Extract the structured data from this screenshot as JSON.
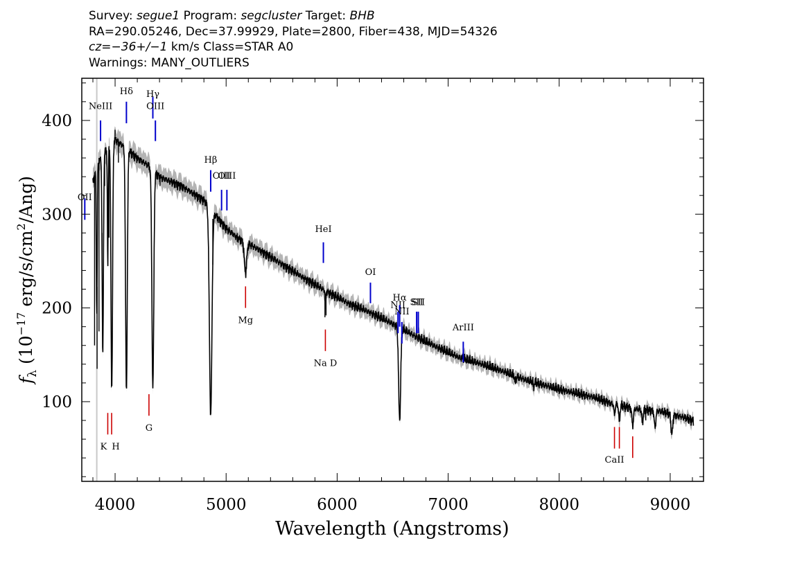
{
  "header": {
    "line1": {
      "survey_label": "Survey: ",
      "survey": "segue1",
      "program_label": " Program: ",
      "program": "segcluster",
      "target_label": " Target: ",
      "target": "BHB"
    },
    "line2": "RA=290.05246, Dec=37.99929, Plate=2800, Fiber=438, MJD=54326",
    "line3": {
      "cz": "cz=−36+/−1",
      "rest": " km/s Class=STAR A0"
    },
    "line4": "Warnings: MANY_OUTLIERS"
  },
  "chart_data": {
    "type": "line",
    "title": "",
    "xlabel": "Wavelength (Angstroms)",
    "ylabel": "f_λ (10^−17 erg/s/cm^2/Ang)",
    "xlim": [
      3700,
      9300
    ],
    "ylim": [
      15,
      445
    ],
    "x_ticks": [
      4000,
      5000,
      6000,
      7000,
      8000,
      9000
    ],
    "y_ticks": [
      100,
      200,
      300,
      400
    ],
    "colors": {
      "spectrum": "#000000",
      "error": "#b4b4b4",
      "emission": "#0000cc",
      "absorption": "#cc0000"
    },
    "continuum": [
      [
        3800,
        335
      ],
      [
        3850,
        355
      ],
      [
        3900,
        365
      ],
      [
        4000,
        380
      ],
      [
        4100,
        370
      ],
      [
        4200,
        360
      ],
      [
        4300,
        352
      ],
      [
        4400,
        340
      ],
      [
        4600,
        330
      ],
      [
        4800,
        315
      ],
      [
        4900,
        300
      ],
      [
        5000,
        285
      ],
      [
        5100,
        275
      ],
      [
        5300,
        262
      ],
      [
        5500,
        247
      ],
      [
        5700,
        232
      ],
      [
        5900,
        218
      ],
      [
        6100,
        205
      ],
      [
        6300,
        195
      ],
      [
        6500,
        183
      ],
      [
        6700,
        170
      ],
      [
        6900,
        158
      ],
      [
        7100,
        147
      ],
      [
        7300,
        140
      ],
      [
        7500,
        132
      ],
      [
        7700,
        123
      ],
      [
        8000,
        113
      ],
      [
        8300,
        105
      ],
      [
        8500,
        97
      ],
      [
        8700,
        92
      ],
      [
        8900,
        90
      ],
      [
        9100,
        84
      ],
      [
        9200,
        80
      ]
    ],
    "absorption_dips": [
      [
        3835,
        0.45,
        6
      ],
      [
        3889,
        0.6,
        8
      ],
      [
        3934,
        0.35,
        5
      ],
      [
        3970,
        0.7,
        10
      ],
      [
        4102,
        0.7,
        11
      ],
      [
        4340,
        0.67,
        12
      ],
      [
        4861,
        0.72,
        16
      ],
      [
        5175,
        0.12,
        15
      ],
      [
        5895,
        0.1,
        4
      ],
      [
        6563,
        0.55,
        13
      ],
      [
        7605,
        0.05,
        8
      ],
      [
        7770,
        0.06,
        4
      ],
      [
        8498,
        0.12,
        7
      ],
      [
        8542,
        0.18,
        8
      ],
      [
        8662,
        0.2,
        10
      ],
      [
        8750,
        0.15,
        9
      ],
      [
        8863,
        0.2,
        10
      ],
      [
        9015,
        0.25,
        11
      ]
    ],
    "spikes": [
      [
        3815,
        160
      ],
      [
        3838,
        135
      ],
      [
        3855,
        175
      ],
      [
        3883,
        280
      ],
      [
        3906,
        330
      ],
      [
        3945,
        275
      ],
      [
        4000,
        390
      ],
      [
        4030,
        355
      ],
      [
        4240,
        358
      ],
      [
        4405,
        330
      ],
      [
        4880,
        295
      ],
      [
        5100,
        280
      ],
      [
        5890,
        190
      ],
      [
        5900,
        192
      ],
      [
        7750,
        122
      ],
      [
        8780,
        80
      ]
    ],
    "emission_lines": [
      {
        "label": "NeIII",
        "wavelength": 3869,
        "label_y": 412,
        "tick_bottom": 378,
        "tick_top": 400
      },
      {
        "label": "OII",
        "wavelength": 3727,
        "label_y": 315,
        "tick_bottom": 294,
        "tick_top": 317
      },
      {
        "label": "Hδ",
        "wavelength": 4102,
        "label_y": 428,
        "tick_bottom": 397,
        "tick_top": 420
      },
      {
        "label": "Hγ",
        "wavelength": 4340,
        "label_y": 425,
        "tick_bottom": 402,
        "tick_top": 425
      },
      {
        "label": "OIII",
        "wavelength": 4363,
        "label_y": 412,
        "tick_bottom": 378,
        "tick_top": 400
      },
      {
        "label": "Hβ",
        "wavelength": 4861,
        "label_y": 355,
        "tick_bottom": 324,
        "tick_top": 347
      },
      {
        "label": "OIII",
        "wavelength": 4959,
        "label_y": 338,
        "tick_bottom": 304,
        "tick_top": 326
      },
      {
        "label": "OIII",
        "wavelength": 5007,
        "label_y": 338,
        "tick_bottom": 304,
        "tick_top": 326
      },
      {
        "label": "HeI",
        "wavelength": 5876,
        "label_y": 281,
        "tick_bottom": 248,
        "tick_top": 270
      },
      {
        "label": "OI",
        "wavelength": 6300,
        "label_y": 235,
        "tick_bottom": 205,
        "tick_top": 227
      },
      {
        "label": "NII",
        "wavelength": 6548,
        "label_y": 200,
        "tick_bottom": 173,
        "tick_top": 196
      },
      {
        "label": "Hα",
        "wavelength": 6563,
        "label_y": 208,
        "tick_bottom": 180,
        "tick_top": 203
      },
      {
        "label": "NII",
        "wavelength": 6583,
        "label_y": 193,
        "tick_bottom": 162,
        "tick_top": 185
      },
      {
        "label": "SII",
        "wavelength": 6716,
        "label_y": 203,
        "tick_bottom": 173,
        "tick_top": 196
      },
      {
        "label": "SII",
        "wavelength": 6731,
        "label_y": 203,
        "tick_bottom": 173,
        "tick_top": 196
      },
      {
        "label": "ArIII",
        "wavelength": 7136,
        "label_y": 176,
        "tick_bottom": 142,
        "tick_top": 164
      }
    ],
    "absorption_lines": [
      {
        "label": "K",
        "wavelength": 3934,
        "tick_top": 88,
        "tick_bottom": 65,
        "label_y": 49,
        "label_dx": -6
      },
      {
        "label": "H",
        "wavelength": 3969,
        "tick_top": 88,
        "tick_bottom": 65,
        "label_y": 49,
        "label_dx": 6
      },
      {
        "label": "G",
        "wavelength": 4305,
        "tick_top": 108,
        "tick_bottom": 85,
        "label_y": 69,
        "label_dx": 0
      },
      {
        "label": "Mg",
        "wavelength": 5175,
        "tick_top": 223,
        "tick_bottom": 200,
        "label_y": 184,
        "label_dx": 0
      },
      {
        "label": "Na D",
        "wavelength": 5894,
        "tick_top": 177,
        "tick_bottom": 154,
        "label_y": 138,
        "label_dx": 0
      },
      {
        "label": "CaII",
        "wavelength": 8498,
        "tick_top": 73,
        "tick_bottom": 50,
        "label_y": 35,
        "label_dx": 0
      },
      {
        "label": "",
        "wavelength": 8542,
        "tick_top": 73,
        "tick_bottom": 50
      },
      {
        "label": "",
        "wavelength": 8662,
        "tick_top": 63,
        "tick_bottom": 40
      }
    ]
  }
}
